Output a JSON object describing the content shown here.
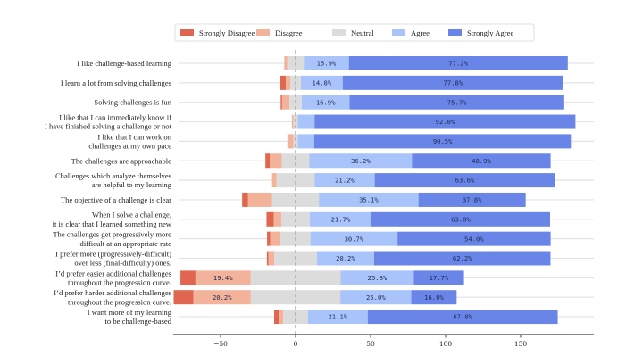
{
  "chart_data": {
    "type": "bar",
    "orientation": "horizontal-diverging-stacked",
    "title": "",
    "xlabel": "",
    "ylabel": "",
    "xlim": [
      -81,
      199
    ],
    "xticks": [
      -50,
      0,
      50,
      100,
      150
    ],
    "xtick_labels": [
      "−50",
      "0",
      "50",
      "100",
      "150"
    ],
    "grid": false,
    "legend_position": "top-center",
    "total_respondents": 189,
    "label_threshold_percent": 10,
    "colors": {
      "Strongly Disagree": "#e06650",
      "Disagree": "#f3b29a",
      "Neutral": "#dcdcdc",
      "Agree": "#a9c4fb",
      "Strongly Agree": "#6a85e8"
    },
    "legend": [
      "Strongly Disagree",
      "Disagree",
      "Neutral",
      "Agree",
      "Strongly Agree"
    ],
    "categories": [
      "I like challenge-based learning",
      "I learn a lot from solving challenges",
      "Solving challenges is fun",
      "I like that I can immediately know if\nI have finished solving a challenge or not",
      "I like that I can work on\nchallenges at my own pace",
      "The challenges are approachable",
      "Challenges which analyze themselves\nare helpful to my learning",
      "The objective of a challenge is clear",
      "When I solve a challenge,\nit is clear that I learned something new",
      "The challenges get progressively more\ndifficult at an appropriate rate",
      "I prefer more (progressively-difficult)\nover less (final-difficulty) ones.",
      "I’d prefer easier additional challenges\nthroughout the progression curve.",
      "I’d prefer harder additional challenges\nthroughout the progression curve.",
      "I want more of my learning\nto be challenge-based"
    ],
    "series": [
      {
        "name": "Strongly Disagree",
        "values_percent": [
          0.0,
          2.1,
          0.5,
          0.0,
          0.0,
          1.6,
          0.0,
          2.1,
          2.6,
          1.1,
          0.5,
          5.3,
          7.0,
          1.6
        ]
      },
      {
        "name": "Disagree",
        "values_percent": [
          1.1,
          1.6,
          2.6,
          0.5,
          2.1,
          4.2,
          1.6,
          8.5,
          2.6,
          3.7,
          2.1,
          19.4,
          20.2,
          1.6
        ]
      },
      {
        "name": "Neutral",
        "values_percent": [
          5.8,
          3.7,
          4.3,
          1.6,
          1.6,
          9.7,
          13.4,
          16.5,
          10.1,
          10.5,
          15.0,
          31.8,
          31.6,
          8.7
        ]
      },
      {
        "name": "Agree",
        "values_percent": [
          15.9,
          14.8,
          16.9,
          5.9,
          5.8,
          36.2,
          21.2,
          35.1,
          21.7,
          30.7,
          20.2,
          25.8,
          25.0,
          21.1
        ]
      },
      {
        "name": "Strongly Agree",
        "values_percent": [
          77.2,
          77.8,
          75.7,
          92.0,
          90.5,
          48.9,
          63.6,
          37.8,
          63.0,
          54.0,
          62.2,
          17.7,
          16.0,
          67.0
        ]
      }
    ]
  }
}
